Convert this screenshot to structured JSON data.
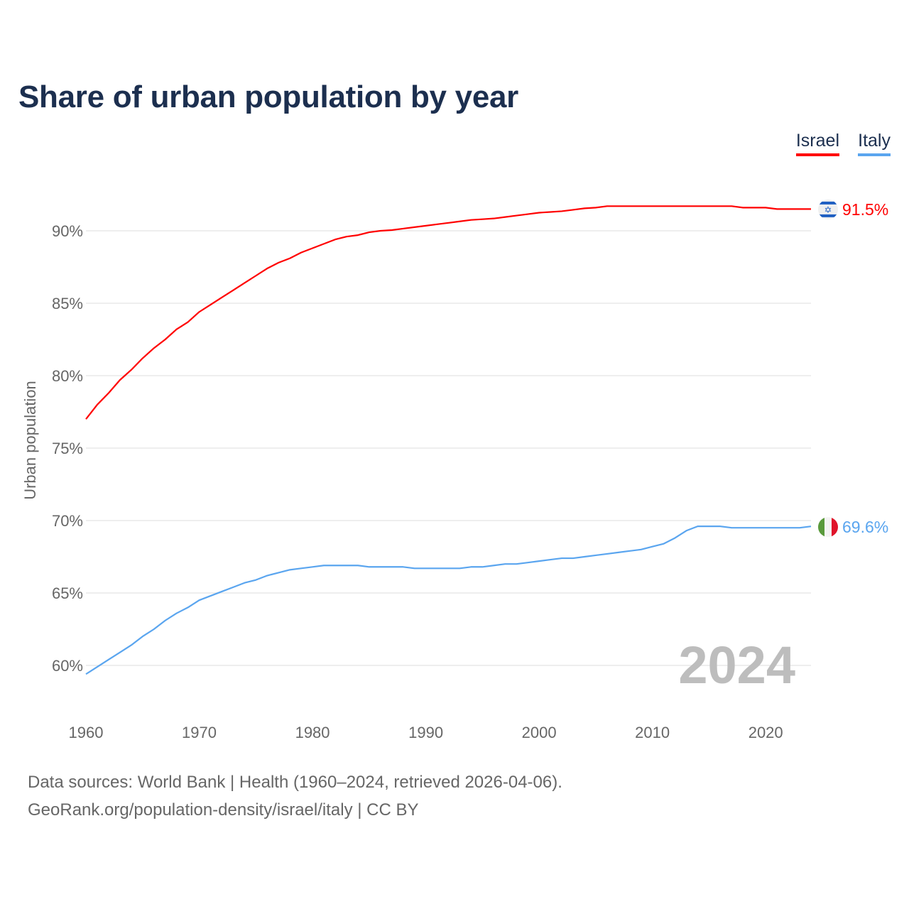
{
  "chart_data": {
    "type": "line",
    "title": "Share of urban population by year",
    "ylabel": "Urban population",
    "xlabel": "",
    "xlim": [
      1960,
      2024
    ],
    "ylim": [
      57.5,
      93.5
    ],
    "x_ticks": [
      1960,
      1970,
      1980,
      1990,
      2000,
      2010,
      2020
    ],
    "y_ticks": [
      60,
      65,
      70,
      75,
      80,
      85,
      90
    ],
    "y_tick_labels": [
      "60%",
      "65%",
      "70%",
      "75%",
      "80%",
      "85%",
      "90%"
    ],
    "x_tick_labels": [
      "1960",
      "1970",
      "1980",
      "1990",
      "2000",
      "2010",
      "2020"
    ],
    "grid": true,
    "legend_placement": "top-right",
    "year_watermark": "2024",
    "x": [
      1960,
      1961,
      1962,
      1963,
      1964,
      1965,
      1966,
      1967,
      1968,
      1969,
      1970,
      1971,
      1972,
      1973,
      1974,
      1975,
      1976,
      1977,
      1978,
      1979,
      1980,
      1981,
      1982,
      1983,
      1984,
      1985,
      1986,
      1987,
      1988,
      1989,
      1990,
      1991,
      1992,
      1993,
      1994,
      1995,
      1996,
      1997,
      1998,
      1999,
      2000,
      2001,
      2002,
      2003,
      2004,
      2005,
      2006,
      2007,
      2008,
      2009,
      2010,
      2011,
      2012,
      2013,
      2014,
      2015,
      2016,
      2017,
      2018,
      2019,
      2020,
      2021,
      2022,
      2023,
      2024
    ],
    "series": [
      {
        "name": "Israel",
        "color": "#ff0000",
        "end_label": "91.5%",
        "flag": "israel-flag",
        "values": [
          77.0,
          78.0,
          78.8,
          79.7,
          80.4,
          81.2,
          81.9,
          82.5,
          83.2,
          83.7,
          84.4,
          84.9,
          85.4,
          85.9,
          86.4,
          86.9,
          87.4,
          87.8,
          88.1,
          88.5,
          88.8,
          89.1,
          89.4,
          89.6,
          89.7,
          89.9,
          90.0,
          90.05,
          90.15,
          90.25,
          90.35,
          90.45,
          90.55,
          90.65,
          90.75,
          90.8,
          90.85,
          90.95,
          91.05,
          91.15,
          91.25,
          91.3,
          91.35,
          91.45,
          91.55,
          91.6,
          91.7,
          91.7,
          91.7,
          91.7,
          91.7,
          91.7,
          91.7,
          91.7,
          91.7,
          91.7,
          91.7,
          91.7,
          91.6,
          91.6,
          91.6,
          91.5,
          91.5,
          91.5,
          91.5
        ]
      },
      {
        "name": "Italy",
        "color": "#5aa5ef",
        "end_label": "69.6%",
        "flag": "italy-flag",
        "values": [
          59.4,
          59.9,
          60.4,
          60.9,
          61.4,
          62.0,
          62.5,
          63.1,
          63.6,
          64.0,
          64.5,
          64.8,
          65.1,
          65.4,
          65.7,
          65.9,
          66.2,
          66.4,
          66.6,
          66.7,
          66.8,
          66.9,
          66.9,
          66.9,
          66.9,
          66.8,
          66.8,
          66.8,
          66.8,
          66.7,
          66.7,
          66.7,
          66.7,
          66.7,
          66.8,
          66.8,
          66.9,
          67.0,
          67.0,
          67.1,
          67.2,
          67.3,
          67.4,
          67.4,
          67.5,
          67.6,
          67.7,
          67.8,
          67.9,
          68.0,
          68.2,
          68.4,
          68.8,
          69.3,
          69.6,
          69.6,
          69.6,
          69.5,
          69.5,
          69.5,
          69.5,
          69.5,
          69.5,
          69.5,
          69.6
        ]
      }
    ]
  },
  "legend": {
    "israel": "Israel",
    "italy": "Italy"
  },
  "footer": {
    "sources": "Data sources: World Bank | Health (1960–2024, retrieved 2026-04-06).",
    "credit": "GeoRank.org/population-density/israel/italy | CC BY"
  }
}
